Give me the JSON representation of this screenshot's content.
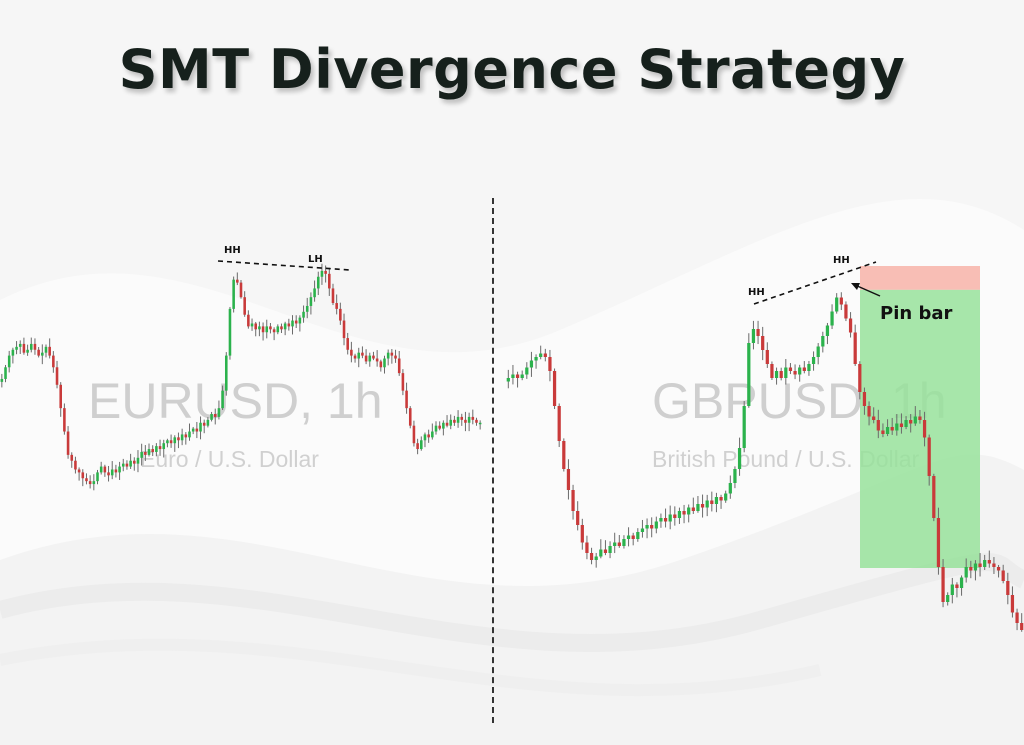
{
  "title": "SMT Divergence Strategy",
  "colors": {
    "bull": "#2bb24c",
    "bear": "#c93a3a",
    "wick": "#6a6a6a",
    "target_zone": "#98e29b",
    "stop_zone": "#f7b3a8"
  },
  "chart_data": [
    {
      "type": "candlestick",
      "symbol": "EURUSD, 1h",
      "description": "Euro / U.S. Dollar",
      "annotations": [
        {
          "text": "HH"
        },
        {
          "text": "LH"
        }
      ],
      "closes": [
        0.62,
        0.66,
        0.7,
        0.72,
        0.73,
        0.74,
        0.71,
        0.72,
        0.74,
        0.72,
        0.7,
        0.71,
        0.73,
        0.7,
        0.66,
        0.6,
        0.52,
        0.44,
        0.36,
        0.34,
        0.31,
        0.3,
        0.28,
        0.27,
        0.26,
        0.27,
        0.3,
        0.32,
        0.3,
        0.29,
        0.31,
        0.3,
        0.32,
        0.33,
        0.32,
        0.34,
        0.33,
        0.35,
        0.37,
        0.36,
        0.38,
        0.37,
        0.39,
        0.38,
        0.4,
        0.41,
        0.4,
        0.42,
        0.41,
        0.43,
        0.42,
        0.44,
        0.45,
        0.44,
        0.47,
        0.46,
        0.48,
        0.5,
        0.49,
        0.52,
        0.58,
        0.7,
        0.86,
        0.96,
        0.95,
        0.9,
        0.84,
        0.8,
        0.81,
        0.79,
        0.8,
        0.78,
        0.8,
        0.79,
        0.78,
        0.8,
        0.79,
        0.81,
        0.8,
        0.82,
        0.81,
        0.83,
        0.85,
        0.87,
        0.9,
        0.93,
        0.97,
        0.99,
        0.98,
        0.93,
        0.88,
        0.86,
        0.82,
        0.76,
        0.72,
        0.7,
        0.69,
        0.71,
        0.7,
        0.68,
        0.7,
        0.69,
        0.68,
        0.66,
        0.69,
        0.71,
        0.7,
        0.69,
        0.64,
        0.58,
        0.52,
        0.46,
        0.4,
        0.38,
        0.41,
        0.43,
        0.42,
        0.44,
        0.46,
        0.45,
        0.47,
        0.46,
        0.48,
        0.47,
        0.49,
        0.48,
        0.47,
        0.49,
        0.48,
        0.47,
        0.47
      ]
    },
    {
      "type": "candlestick",
      "symbol": "GBPUSD, 1h",
      "description": "British Pound / U.S. Dollar",
      "annotations": [
        {
          "text": "HH"
        },
        {
          "text": "HH"
        },
        {
          "text": "Pin bar"
        }
      ],
      "trade_zones": [
        {
          "kind": "stop",
          "from": 1.0,
          "to": 0.94
        },
        {
          "kind": "target",
          "from": 0.94,
          "to": 0.24
        }
      ],
      "closes": [
        0.72,
        0.73,
        0.72,
        0.73,
        0.75,
        0.77,
        0.78,
        0.79,
        0.78,
        0.74,
        0.64,
        0.54,
        0.46,
        0.4,
        0.34,
        0.3,
        0.25,
        0.22,
        0.2,
        0.21,
        0.23,
        0.22,
        0.24,
        0.25,
        0.24,
        0.26,
        0.27,
        0.26,
        0.28,
        0.29,
        0.3,
        0.29,
        0.31,
        0.32,
        0.31,
        0.33,
        0.32,
        0.34,
        0.33,
        0.35,
        0.34,
        0.36,
        0.35,
        0.37,
        0.36,
        0.38,
        0.37,
        0.39,
        0.42,
        0.46,
        0.52,
        0.64,
        0.82,
        0.86,
        0.84,
        0.8,
        0.76,
        0.72,
        0.74,
        0.72,
        0.75,
        0.74,
        0.73,
        0.75,
        0.74,
        0.76,
        0.78,
        0.81,
        0.84,
        0.87,
        0.91,
        0.95,
        0.93,
        0.89,
        0.85,
        0.76,
        0.68,
        0.64,
        0.61,
        0.6,
        0.57,
        0.56,
        0.58,
        0.57,
        0.59,
        0.58,
        0.6,
        0.59,
        0.61,
        0.6,
        0.55,
        0.44,
        0.32,
        0.18,
        0.08,
        0.1,
        0.13,
        0.12,
        0.15,
        0.18,
        0.17,
        0.19,
        0.18,
        0.2,
        0.19,
        0.18,
        0.17,
        0.14,
        0.1,
        0.05,
        0.02,
        0.0
      ]
    }
  ]
}
